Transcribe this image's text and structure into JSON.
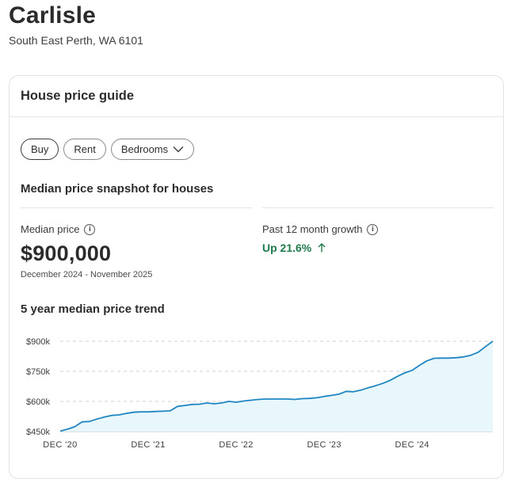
{
  "header": {
    "title": "Carlisle",
    "address": "South East Perth, WA 6101"
  },
  "card": {
    "title": "House price guide",
    "filters": [
      {
        "label": "Buy",
        "selected": true
      },
      {
        "label": "Rent",
        "selected": false
      },
      {
        "label": "Bedrooms",
        "selected": false,
        "icon": "chevron-down-icon"
      }
    ],
    "snapshot_title": "Median price snapshot for houses",
    "median": {
      "label": "Median price",
      "value": "$900,000",
      "period": "December 2024 - November 2025"
    },
    "growth": {
      "label": "Past 12 month growth",
      "value": "Up 21.6%",
      "icon": "arrow-up-icon",
      "color": "#1f7a4a"
    },
    "trend_title": "5 year median price trend"
  },
  "chart_data": {
    "type": "area",
    "title": "5 year median price trend",
    "ytick_labels": [
      "$450k",
      "$600k",
      "$750k",
      "$900k"
    ],
    "yticks": [
      450000,
      600000,
      750000,
      900000
    ],
    "ylim": [
      450000,
      900000
    ],
    "xtick_labels": [
      "DEC '20",
      "DEC '21",
      "DEC '22",
      "DEC '23",
      "DEC '24"
    ],
    "xticks": [
      "2020-12",
      "2021-12",
      "2022-12",
      "2023-12",
      "2024-12"
    ],
    "x": [
      "2020-12",
      "2021-01",
      "2021-02",
      "2021-03",
      "2021-04",
      "2021-05",
      "2021-06",
      "2021-07",
      "2021-08",
      "2021-09",
      "2021-10",
      "2021-11",
      "2021-12",
      "2022-01",
      "2022-02",
      "2022-03",
      "2022-04",
      "2022-05",
      "2022-06",
      "2022-07",
      "2022-08",
      "2022-09",
      "2022-10",
      "2022-11",
      "2022-12",
      "2023-01",
      "2023-02",
      "2023-03",
      "2023-04",
      "2023-05",
      "2023-06",
      "2023-07",
      "2023-08",
      "2023-09",
      "2023-10",
      "2023-11",
      "2023-12",
      "2024-01",
      "2024-02",
      "2024-03",
      "2024-04",
      "2024-05",
      "2024-06",
      "2024-07",
      "2024-08",
      "2024-09",
      "2024-10",
      "2024-11",
      "2024-12",
      "2025-01",
      "2025-02",
      "2025-03",
      "2025-04",
      "2025-05",
      "2025-06",
      "2025-07",
      "2025-08",
      "2025-09",
      "2025-10",
      "2025-11"
    ],
    "y": [
      452000,
      462000,
      474000,
      498000,
      500000,
      512000,
      522000,
      530000,
      533000,
      540000,
      546000,
      548000,
      548000,
      550000,
      551000,
      553000,
      575000,
      580000,
      585000,
      586000,
      592000,
      588000,
      592000,
      600000,
      596000,
      602000,
      606000,
      610000,
      612000,
      612000,
      612000,
      612000,
      610000,
      614000,
      615000,
      618000,
      625000,
      630000,
      636000,
      650000,
      648000,
      656000,
      668000,
      678000,
      690000,
      705000,
      725000,
      742000,
      755000,
      780000,
      802000,
      815000,
      816000,
      816000,
      818000,
      822000,
      830000,
      845000,
      873000,
      900000
    ],
    "grid": "horizontal-dashed",
    "line_color": "#1f86c2",
    "fill_color": "#e8f7fc",
    "legend": "none"
  }
}
